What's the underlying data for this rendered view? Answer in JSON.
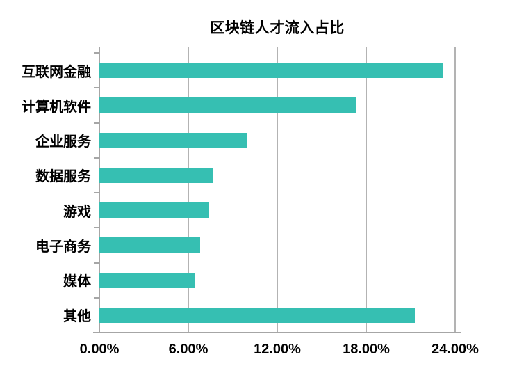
{
  "chart_data": {
    "type": "bar",
    "orientation": "horizontal",
    "title": "区块链人才流入占比",
    "categories": [
      "互联网金融",
      "计算机软件",
      "企业服务",
      "数据服务",
      "游戏",
      "电子商务",
      "媒体",
      "其他"
    ],
    "values": [
      23.2,
      17.3,
      10.0,
      7.7,
      7.4,
      6.8,
      6.4,
      21.3
    ],
    "unit": "%",
    "x_ticks": [
      "0.00%",
      "6.00%",
      "12.00%",
      "18.00%",
      "24.00%"
    ],
    "xlim": [
      0,
      24
    ],
    "grid": "vertical-only",
    "legend": "none",
    "colors": {
      "bar": "#36bfb2",
      "gridline": "#b3b3b3",
      "axis": "#a6a6a6",
      "text": "#000000",
      "background": "#ffffff"
    }
  }
}
